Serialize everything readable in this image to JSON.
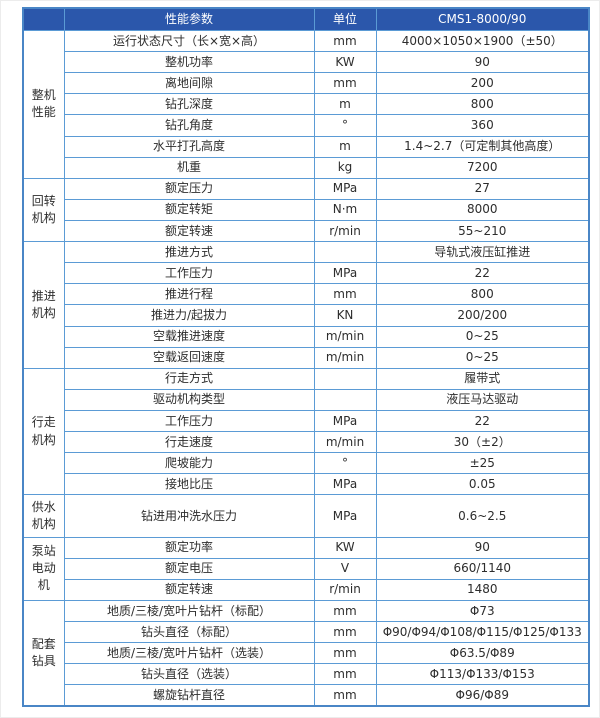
{
  "table": {
    "headers": [
      "性能参数",
      "单位",
      "CMS1-8000/90"
    ],
    "header_bg": "#2b57ab",
    "border_color": "#5b9bd5",
    "groups": [
      {
        "label": "整机\n性能",
        "rows": [
          {
            "param": "运行状态尺寸（长×宽×高）",
            "unit": "mm",
            "value": "4000×1050×1900（±50）"
          },
          {
            "param": "整机功率",
            "unit": "KW",
            "value": "90"
          },
          {
            "param": "离地间隙",
            "unit": "mm",
            "value": "200"
          },
          {
            "param": "钻孔深度",
            "unit": "m",
            "value": "800"
          },
          {
            "param": "钻孔角度",
            "unit": "°",
            "value": "360"
          },
          {
            "param": "水平打孔高度",
            "unit": "m",
            "value": "1.4~2.7（可定制其他高度）"
          },
          {
            "param": "机重",
            "unit": "kg",
            "value": "7200"
          }
        ]
      },
      {
        "label": "回转\n机构",
        "rows": [
          {
            "param": "额定压力",
            "unit": "MPa",
            "value": "27"
          },
          {
            "param": "额定转矩",
            "unit": "N·m",
            "value": "8000"
          },
          {
            "param": "额定转速",
            "unit": "r/min",
            "value": "55~210"
          }
        ]
      },
      {
        "label": "推进\n机构",
        "rows": [
          {
            "param": "推进方式",
            "unit": "",
            "value": "导轨式液压缸推进"
          },
          {
            "param": "工作压力",
            "unit": "MPa",
            "value": "22"
          },
          {
            "param": "推进行程",
            "unit": "mm",
            "value": "800"
          },
          {
            "param": "推进力/起拔力",
            "unit": "KN",
            "value": "200/200"
          },
          {
            "param": "空载推进速度",
            "unit": "m/min",
            "value": "0~25"
          },
          {
            "param": "空载返回速度",
            "unit": "m/min",
            "value": "0~25"
          }
        ]
      },
      {
        "label": "行走\n机构",
        "rows": [
          {
            "param": "行走方式",
            "unit": "",
            "value": "履带式"
          },
          {
            "param": "驱动机构类型",
            "unit": "",
            "value": "液压马达驱动"
          },
          {
            "param": "工作压力",
            "unit": "MPa",
            "value": "22"
          },
          {
            "param": "行走速度",
            "unit": "m/min",
            "value": "30（±2）"
          },
          {
            "param": "爬坡能力",
            "unit": "°",
            "value": "±25"
          },
          {
            "param": "接地比压",
            "unit": "MPa",
            "value": "0.05"
          }
        ]
      },
      {
        "label": "供水\n机构",
        "tall": true,
        "rows": [
          {
            "param": "钻进用冲洗水压力",
            "unit": "MPa",
            "value": "0.6~2.5"
          }
        ]
      },
      {
        "label": "泵站\n电动机",
        "rows": [
          {
            "param": "额定功率",
            "unit": "KW",
            "value": "90"
          },
          {
            "param": "额定电压",
            "unit": "V",
            "value": "660/1140"
          },
          {
            "param": "额定转速",
            "unit": "r/min",
            "value": "1480"
          }
        ]
      },
      {
        "label": "配套\n钻具",
        "rows": [
          {
            "param": "地质/三棱/宽叶片钻杆（标配）",
            "unit": "mm",
            "value": "Φ73"
          },
          {
            "param": "钻头直径（标配）",
            "unit": "mm",
            "value": "Φ90/Φ94/Φ108/Φ115/Φ125/Φ133"
          },
          {
            "param": "地质/三棱/宽叶片钻杆（选装）",
            "unit": "mm",
            "value": "Φ63.5/Φ89"
          },
          {
            "param": "钻头直径（选装）",
            "unit": "mm",
            "value": "Φ113/Φ133/Φ153"
          },
          {
            "param": "螺旋钻杆直径",
            "unit": "mm",
            "value": "Φ96/Φ89"
          }
        ]
      }
    ]
  }
}
